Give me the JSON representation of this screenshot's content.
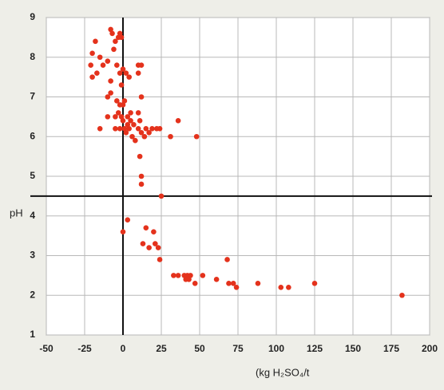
{
  "chart_data": {
    "type": "scatter",
    "x_label": "(kg H₂SO₄/t",
    "y_label": "pH",
    "color": "#e4321c",
    "x": [
      -20,
      -18,
      -21,
      -15,
      -13,
      -8,
      -7,
      -5,
      -6,
      -3,
      -2,
      -1,
      -20,
      -17,
      -10,
      -8,
      -4,
      -2,
      -1,
      0,
      2,
      -8,
      -10,
      -4,
      -2,
      -1,
      -3,
      0,
      1,
      -10,
      -5,
      -15,
      -5,
      -2,
      1,
      0,
      3,
      5,
      2,
      4,
      6,
      8,
      3,
      5,
      7,
      10,
      10,
      11,
      12,
      10,
      10,
      12,
      4,
      12,
      14,
      15,
      17,
      19,
      22,
      24,
      11,
      12,
      12,
      31,
      36,
      48,
      25,
      0,
      3,
      15,
      13,
      17,
      20,
      21,
      23,
      24,
      33,
      36,
      40,
      41,
      42,
      43,
      44,
      47,
      52,
      61,
      68,
      69,
      72,
      74,
      88,
      103,
      108,
      125,
      182
    ],
    "values": [
      8.1,
      8.4,
      7.8,
      8.0,
      7.8,
      8.7,
      8.6,
      8.4,
      8.2,
      8.5,
      8.6,
      8.5,
      7.5,
      7.6,
      7.9,
      7.4,
      7.8,
      7.6,
      7.3,
      7.7,
      7.6,
      7.1,
      7.0,
      6.9,
      6.8,
      6.5,
      6.6,
      6.8,
      6.9,
      6.5,
      6.5,
      6.2,
      6.2,
      6.2,
      6.2,
      6.4,
      6.5,
      6.4,
      6.1,
      6.2,
      6.0,
      5.9,
      6.3,
      6.6,
      6.3,
      6.2,
      6.6,
      6.4,
      7.0,
      7.6,
      7.8,
      7.8,
      7.5,
      6.1,
      6.0,
      6.2,
      6.1,
      6.2,
      6.2,
      6.2,
      5.5,
      5.0,
      4.8,
      6.0,
      6.4,
      6.0,
      4.5,
      3.6,
      3.9,
      3.7,
      3.3,
      3.2,
      3.6,
      3.3,
      3.2,
      2.9,
      2.5,
      2.5,
      2.5,
      2.4,
      2.5,
      2.4,
      2.5,
      2.3,
      2.5,
      2.4,
      2.9,
      2.3,
      2.3,
      2.2,
      2.3,
      2.2,
      2.2,
      2.3,
      2.0
    ],
    "xlim": [
      -50,
      200
    ],
    "ylim": [
      1,
      9
    ],
    "xticks": [
      -50,
      -25,
      0,
      25,
      50,
      75,
      100,
      125,
      150,
      175,
      200
    ],
    "yticks": [
      1,
      2,
      3,
      4,
      5,
      6,
      7,
      8,
      9
    ],
    "vlines": [
      0
    ],
    "hlines": [
      4.5
    ],
    "grid": true
  }
}
